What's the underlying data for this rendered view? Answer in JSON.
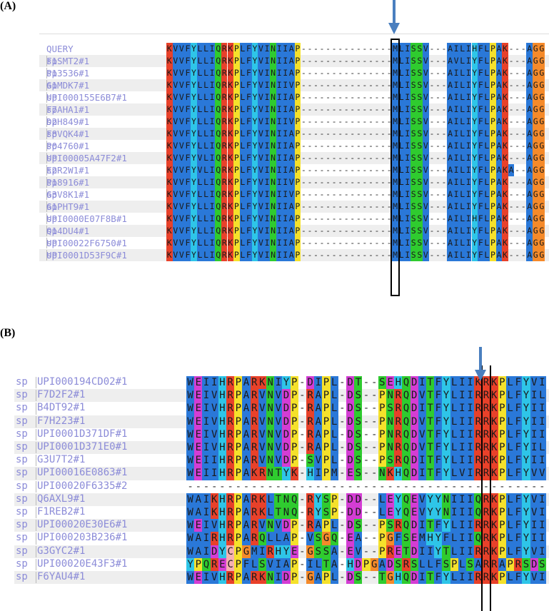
{
  "panels": {
    "a": {
      "label": "(A)",
      "rows": [
        {
          "prefix": "",
          "id": "QUERY",
          "seq": "KVVFYLLIQRKPLFYVINIIAP---------------MLISSV---AILIHFLPAK---AGG"
        },
        {
          "prefix": "sp",
          "id": "F1SMT2#1",
          "seq": "KVVFYLLIQRKPLFYVINIIAP---------------MLISSV---AVLIYFLPAK---AGG"
        },
        {
          "prefix": "sp",
          "id": "P13536#1",
          "seq": "KVVFYLLIQRKPLFYVINIIAP---------------MLISSV---AILIYFLPAK---AGG"
        },
        {
          "prefix": "sp",
          "id": "G1MDK7#1",
          "seq": "KVVFYLLIQRKPLFYVINIIVP---------------MLISSV---AILIYFLPAK---AGG"
        },
        {
          "prefix": "sp",
          "id": "UPI000155E6B7#1",
          "seq": "KVVFYLLIQRKPLFYVINIIAP---------------MLISSV---AILIYFLPAK---AGG"
        },
        {
          "prefix": "sp",
          "id": "F7AHA1#1",
          "seq": "KVVFYLLIQRKPLFYVINIIAP---------------MLISSV---AILIYFLPAK---AGG"
        },
        {
          "prefix": "sp",
          "id": "D2H849#1",
          "seq": "KVVFYLLIQRKPLFYVINIIVP---------------MLISSV---AILIYFLPAK---AGG"
        },
        {
          "prefix": "sp",
          "id": "F8VQK4#1",
          "seq": "KVVFYLLIQRKPLFYVINIIAP---------------MLISSV---AILIYFLPAK---AGG"
        },
        {
          "prefix": "sp",
          "id": "P04760#1",
          "seq": "KVVFYLLIQRKPLFYVINIIAP---------------MLISSV---AILIYFLPAK---AGG"
        },
        {
          "prefix": "sp",
          "id": "UPI00005A47F2#1",
          "seq": "KVVFYVLIQRKPLFYVINIIAP---------------MLISSV---AILIYFLPAK---AGG"
        },
        {
          "prefix": "sp",
          "id": "E2R2W1#1",
          "seq": "KVVFYVLIQRKPLFYVINIIAP---------------MLISSV---AILIYFLPAKA--AGG"
        },
        {
          "prefix": "sp",
          "id": "P18916#1",
          "seq": "KVVFYLLIQRKPLFYVINIIVP---------------MLISSV---AILIYFLPAK---AGG"
        },
        {
          "prefix": "sp",
          "id": "G3V8K1#1",
          "seq": "KVVFYLLIQRKPLFYVINIIVP---------------MLISSV---AILIYFLPAK---AGG"
        },
        {
          "prefix": "sp",
          "id": "G1PHT9#1",
          "seq": "KVVFYLLIQRKPLFYVINIIAP---------------MLISSV---AILIYFLPAK---AGG"
        },
        {
          "prefix": "sp",
          "id": "UPI0000E07F8B#1",
          "seq": "KVVFYLLIQRKPLFYVINIIAP---------------MLISSV---AILIHFLPAK---AGG"
        },
        {
          "prefix": "sp",
          "id": "Q14DU4#1",
          "seq": "KVVFYLLIQRKPLFYVINIIAP---------------MLISSV---AILIYFLPAK---AGG"
        },
        {
          "prefix": "sp",
          "id": "UPI00022F6750#1",
          "seq": "KVVFYLLIQRKPLFYVINIIAP---------------MLISSV---AILIYFLPAK---AGG"
        },
        {
          "prefix": "sp",
          "id": "UPI0001D53F9C#1",
          "seq": "KVVFYLLIQRKPLFYVINIIAP---------------MLISSV---AILIYFLPAK---AGG"
        }
      ]
    },
    "b": {
      "label": "(B)",
      "rows": [
        {
          "prefix": "sp",
          "id": "UPI000194CD02#1",
          "seq": "WEIIHRPARKNIYP-DIPL-DT--SEHQDITFYLIIKRKPLFYVI"
        },
        {
          "prefix": "sp",
          "id": "F7D2F2#1",
          "seq": "WEIVHRPARVNVDP-RAPL-DS--PNRQDVTFYLIIRRKPLFYIL"
        },
        {
          "prefix": "sp",
          "id": "B4DT92#1",
          "seq": "WEIVHRPARVNVDP-RAPL-DS--PSRQDITFYLIIRRKPLFYII"
        },
        {
          "prefix": "sp",
          "id": "F7H223#1",
          "seq": "WEIVHRPARVNVDP-RAPL-DS--PNRQDVTFYLIIRRKPLFYII"
        },
        {
          "prefix": "sp",
          "id": "UPI0001D371DF#1",
          "seq": "WEIVHRPARVNVDP-RAPL-DS--PNRQDVTFYLIIRRKPLFYII"
        },
        {
          "prefix": "sp",
          "id": "UPI0001D371E0#1",
          "seq": "WEIVHRPARVNVDP-RAPL-DS--PNRQDVTFYLIIRRKPLFYIL"
        },
        {
          "prefix": "sp",
          "id": "G3U7T2#1",
          "seq": "WEIIHRPARVNVDP-SVPL-DS--PSRQDITFYLIIRRKPLFYII"
        },
        {
          "prefix": "sp",
          "id": "UPI00016E0863#1",
          "seq": "WEIIHRPAKRNTYK-HIPM-ES--NKHQDITFYLVIRRKPLFYVV"
        },
        {
          "prefix": "sp",
          "id": "UPI00020F6335#2",
          "seq": "---------------------------------------------"
        },
        {
          "prefix": "sp",
          "id": "Q6AXL9#1",
          "seq": "WAIKHRPARKLTNQ-RYSP-DD--LEYQEVYYNIIIQRKPLFYVI"
        },
        {
          "prefix": "sp",
          "id": "F1REB2#1",
          "seq": "WAIKHRPARKLTNQ-RYSP-DD--LEYQEVYYNIIIQRKPLFYVI"
        },
        {
          "prefix": "sp",
          "id": "UPI00020E30E6#1",
          "seq": "WEIVHRPARVNVDP-RAPL-DS--PSRQDITFYLIIRRKPLFYII"
        },
        {
          "prefix": "sp",
          "id": "UPI000203B236#1",
          "seq": "WAIRHRPARQLLAP-VSGQ-EA--PGFSEMHYFLIIQRKPLFYII"
        },
        {
          "prefix": "sp",
          "id": "G3GYC2#1",
          "seq": "WAIDYCPGMIRHYE-GSSA-EV--PRETDIIYTLIIRRKPLFYVI"
        },
        {
          "prefix": "sp",
          "id": "UPI00020E43F3#1",
          "seq": "YPQRECPFLSVIAP-ILTA-HDPGADSRSLLFSPLSARRAPRSDS"
        },
        {
          "prefix": "sp",
          "id": "F6YAU4#1",
          "seq": "WEIVHRPARKNIDP-GAPL-DS--TGHQDITFYLIIRRKPLFYVI"
        }
      ]
    }
  },
  "residue_colors": {
    "K": "#e8412a",
    "R": "#e8412a",
    "D": "#d43dd4",
    "E": "#d43dd4",
    "Q": "#2fcb2f",
    "N": "#2fcb2f",
    "S": "#2fcb2f",
    "T": "#2fcb2f",
    "P": "#f5e12b",
    "G": "#f58a2a",
    "C": "#f6b0b0",
    "F": "#2a78d8",
    "W": "#2a78d8",
    "L": "#2a78d8",
    "I": "#2a78d8",
    "V": "#2a78d8",
    "M": "#2a78d8",
    "A": "#2a78d8",
    "Y": "#2ec5e8",
    "H": "#2ec5e8"
  },
  "label_color": "#8c8cd8"
}
